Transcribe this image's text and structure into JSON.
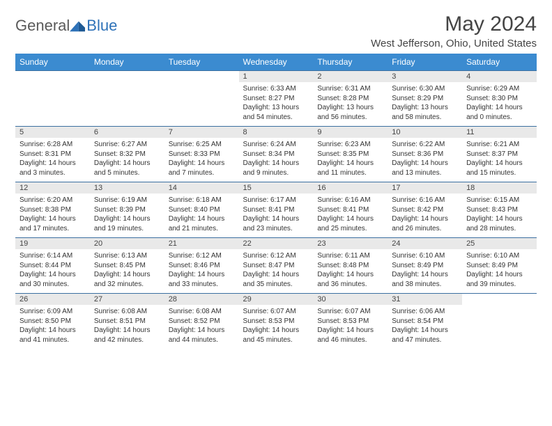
{
  "logo": {
    "general": "General",
    "blue": "Blue"
  },
  "title": "May 2024",
  "location": "West Jefferson, Ohio, United States",
  "colors": {
    "header_bg": "#3b8bd0",
    "header_text": "#ffffff",
    "daynum_bg": "#e9e9e9",
    "row_border": "#3b6fa0",
    "logo_gray": "#5a5a5a",
    "logo_blue": "#2e72b8"
  },
  "fonts": {
    "title_pt": 30,
    "location_pt": 15,
    "header_pt": 12,
    "daynum_pt": 11,
    "body_pt": 10
  },
  "weekdays": [
    "Sunday",
    "Monday",
    "Tuesday",
    "Wednesday",
    "Thursday",
    "Friday",
    "Saturday"
  ],
  "weeks": [
    [
      null,
      null,
      null,
      {
        "n": "1",
        "sr": "6:33 AM",
        "ss": "8:27 PM",
        "dl": "13 hours and 54 minutes."
      },
      {
        "n": "2",
        "sr": "6:31 AM",
        "ss": "8:28 PM",
        "dl": "13 hours and 56 minutes."
      },
      {
        "n": "3",
        "sr": "6:30 AM",
        "ss": "8:29 PM",
        "dl": "13 hours and 58 minutes."
      },
      {
        "n": "4",
        "sr": "6:29 AM",
        "ss": "8:30 PM",
        "dl": "14 hours and 0 minutes."
      }
    ],
    [
      {
        "n": "5",
        "sr": "6:28 AM",
        "ss": "8:31 PM",
        "dl": "14 hours and 3 minutes."
      },
      {
        "n": "6",
        "sr": "6:27 AM",
        "ss": "8:32 PM",
        "dl": "14 hours and 5 minutes."
      },
      {
        "n": "7",
        "sr": "6:25 AM",
        "ss": "8:33 PM",
        "dl": "14 hours and 7 minutes."
      },
      {
        "n": "8",
        "sr": "6:24 AM",
        "ss": "8:34 PM",
        "dl": "14 hours and 9 minutes."
      },
      {
        "n": "9",
        "sr": "6:23 AM",
        "ss": "8:35 PM",
        "dl": "14 hours and 11 minutes."
      },
      {
        "n": "10",
        "sr": "6:22 AM",
        "ss": "8:36 PM",
        "dl": "14 hours and 13 minutes."
      },
      {
        "n": "11",
        "sr": "6:21 AM",
        "ss": "8:37 PM",
        "dl": "14 hours and 15 minutes."
      }
    ],
    [
      {
        "n": "12",
        "sr": "6:20 AM",
        "ss": "8:38 PM",
        "dl": "14 hours and 17 minutes."
      },
      {
        "n": "13",
        "sr": "6:19 AM",
        "ss": "8:39 PM",
        "dl": "14 hours and 19 minutes."
      },
      {
        "n": "14",
        "sr": "6:18 AM",
        "ss": "8:40 PM",
        "dl": "14 hours and 21 minutes."
      },
      {
        "n": "15",
        "sr": "6:17 AM",
        "ss": "8:41 PM",
        "dl": "14 hours and 23 minutes."
      },
      {
        "n": "16",
        "sr": "6:16 AM",
        "ss": "8:41 PM",
        "dl": "14 hours and 25 minutes."
      },
      {
        "n": "17",
        "sr": "6:16 AM",
        "ss": "8:42 PM",
        "dl": "14 hours and 26 minutes."
      },
      {
        "n": "18",
        "sr": "6:15 AM",
        "ss": "8:43 PM",
        "dl": "14 hours and 28 minutes."
      }
    ],
    [
      {
        "n": "19",
        "sr": "6:14 AM",
        "ss": "8:44 PM",
        "dl": "14 hours and 30 minutes."
      },
      {
        "n": "20",
        "sr": "6:13 AM",
        "ss": "8:45 PM",
        "dl": "14 hours and 32 minutes."
      },
      {
        "n": "21",
        "sr": "6:12 AM",
        "ss": "8:46 PM",
        "dl": "14 hours and 33 minutes."
      },
      {
        "n": "22",
        "sr": "6:12 AM",
        "ss": "8:47 PM",
        "dl": "14 hours and 35 minutes."
      },
      {
        "n": "23",
        "sr": "6:11 AM",
        "ss": "8:48 PM",
        "dl": "14 hours and 36 minutes."
      },
      {
        "n": "24",
        "sr": "6:10 AM",
        "ss": "8:49 PM",
        "dl": "14 hours and 38 minutes."
      },
      {
        "n": "25",
        "sr": "6:10 AM",
        "ss": "8:49 PM",
        "dl": "14 hours and 39 minutes."
      }
    ],
    [
      {
        "n": "26",
        "sr": "6:09 AM",
        "ss": "8:50 PM",
        "dl": "14 hours and 41 minutes."
      },
      {
        "n": "27",
        "sr": "6:08 AM",
        "ss": "8:51 PM",
        "dl": "14 hours and 42 minutes."
      },
      {
        "n": "28",
        "sr": "6:08 AM",
        "ss": "8:52 PM",
        "dl": "14 hours and 44 minutes."
      },
      {
        "n": "29",
        "sr": "6:07 AM",
        "ss": "8:53 PM",
        "dl": "14 hours and 45 minutes."
      },
      {
        "n": "30",
        "sr": "6:07 AM",
        "ss": "8:53 PM",
        "dl": "14 hours and 46 minutes."
      },
      {
        "n": "31",
        "sr": "6:06 AM",
        "ss": "8:54 PM",
        "dl": "14 hours and 47 minutes."
      },
      null
    ]
  ],
  "labels": {
    "sunrise": "Sunrise:",
    "sunset": "Sunset:",
    "daylight": "Daylight:"
  }
}
